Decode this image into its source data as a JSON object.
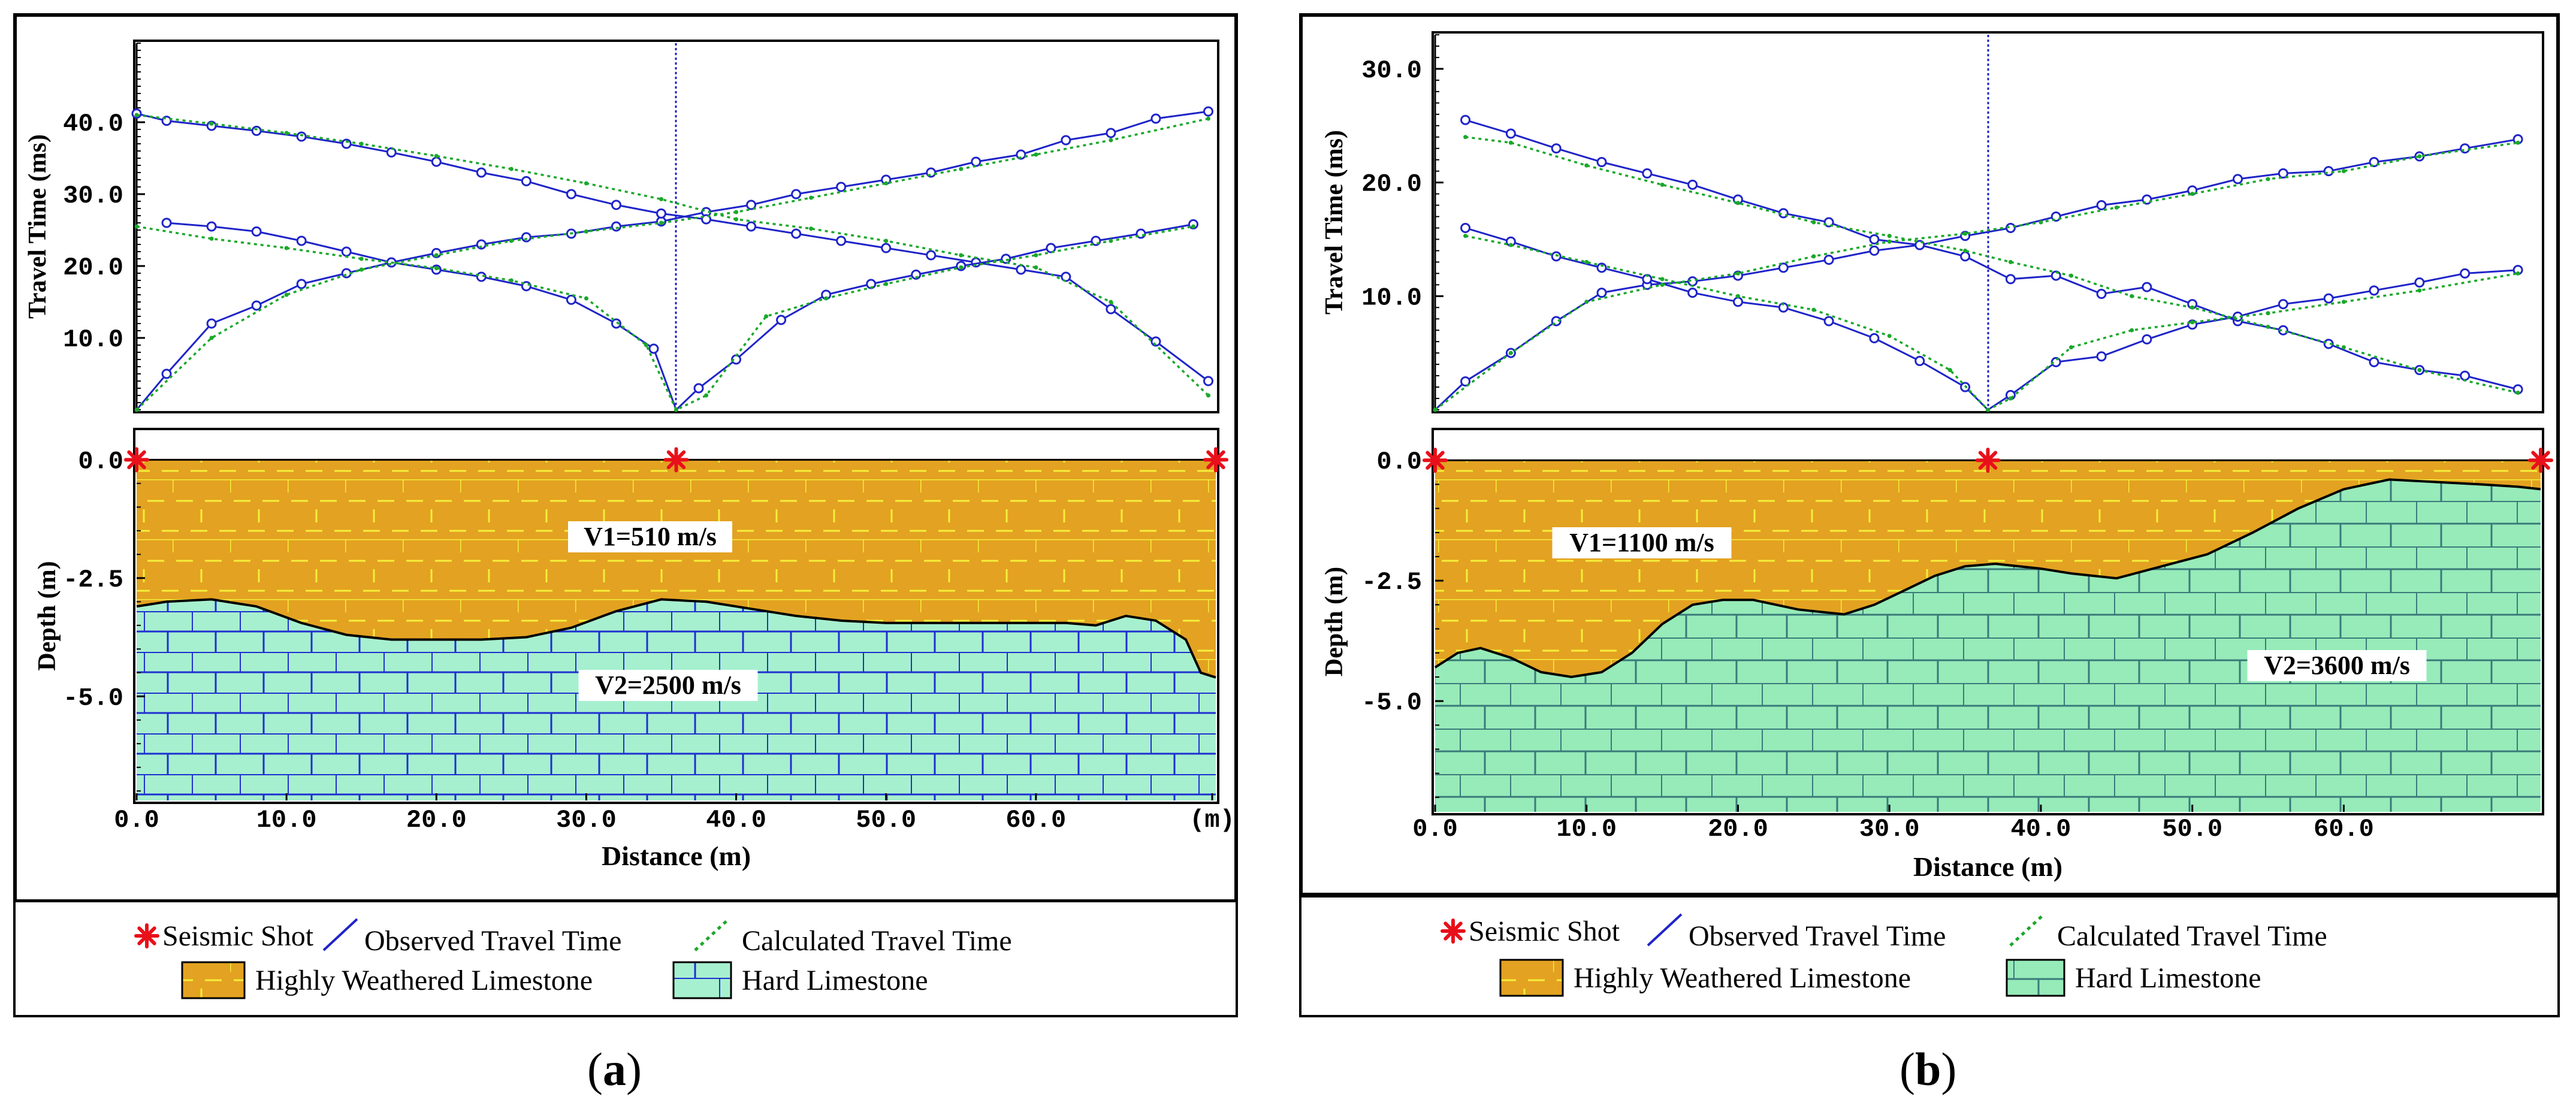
{
  "colors": {
    "observed": "#1f24c8",
    "calculated": "#1aa82a",
    "weathered_fill": "#e3a221",
    "weathered_line": "#f4ef3a",
    "hard_a_fill": "#a6f0cf",
    "hard_a_line": "#1f2fd0",
    "hard_b_fill": "#96ebb9",
    "hard_b_line": "#3a7a7a",
    "shot": "#e8101a"
  },
  "legend": {
    "shot": "Seismic Shot",
    "observed": "Observed Travel Time",
    "calculated": "Calculated Travel Time",
    "weathered": "Highly Weathered Limestone",
    "hard": "Hard Limestone"
  },
  "panels": [
    {
      "tag": "a",
      "chart_data": {
        "type": "line",
        "travel_time": {
          "ylabel": "Travel Time (ms)",
          "yticks": [
            "10.0",
            "20.0",
            "30.0",
            "40.0"
          ],
          "ylim": [
            0,
            51
          ],
          "xlim": [
            0,
            72
          ],
          "series": [
            {
              "name": "Observed Travel Time",
              "shot_x": 0,
              "x": [
                0,
                2,
                5,
                8,
                11,
                14,
                17,
                20,
                23,
                26,
                29,
                32,
                35,
                38,
                41,
                44,
                47,
                50,
                53,
                56,
                59,
                62,
                65,
                68,
                71.5
              ],
              "y": [
                0,
                5,
                12,
                14.5,
                17.5,
                19,
                20.5,
                21.8,
                23,
                24,
                24.5,
                25.5,
                26.2,
                27.5,
                28.5,
                30,
                31,
                32,
                33,
                34.5,
                35.5,
                37.5,
                38.5,
                40.5,
                41.5
              ]
            },
            {
              "name": "Observed Travel Time",
              "shot_x": 71.5,
              "x": [
                0,
                2,
                5,
                8,
                11,
                14,
                17,
                20,
                23,
                26,
                29,
                32,
                35,
                38,
                41,
                44,
                47,
                50,
                53,
                56,
                59,
                62,
                65,
                68,
                71.5
              ],
              "y": [
                41.2,
                40.2,
                39.5,
                38.8,
                38,
                37,
                35.8,
                34.5,
                33,
                31.8,
                30,
                28.5,
                27.3,
                26.5,
                25.5,
                24.5,
                23.5,
                22.5,
                21.5,
                20.5,
                19.5,
                18.5,
                14,
                9.5,
                4
              ]
            },
            {
              "name": "Observed Travel Time",
              "shot_x": 36,
              "x": [
                2,
                5,
                8,
                11,
                14,
                17,
                20,
                23,
                26,
                29,
                32,
                34.5,
                36,
                37.5,
                40,
                43,
                46,
                49,
                52,
                55,
                58,
                61,
                64,
                67,
                70.5
              ],
              "y": [
                26,
                25.5,
                24.8,
                23.5,
                22,
                20.5,
                19.5,
                18.5,
                17.2,
                15.3,
                12,
                8.5,
                0,
                3,
                7,
                12.5,
                16,
                17.5,
                18.8,
                20,
                21,
                22.5,
                23.5,
                24.5,
                25.8
              ]
            },
            {
              "name": "Calculated Travel Time",
              "shot_x": 0,
              "x": [
                0,
                5,
                10,
                15,
                20,
                25,
                30,
                35,
                40,
                45,
                50,
                55,
                60,
                65,
                71.5
              ],
              "y": [
                0,
                10,
                16,
                19.5,
                21.5,
                23.5,
                24.8,
                26,
                27.5,
                29.5,
                31.5,
                33.5,
                35.5,
                37.5,
                40.5
              ]
            },
            {
              "name": "Calculated Travel Time",
              "shot_x": 71.5,
              "x": [
                0,
                5,
                10,
                15,
                20,
                25,
                30,
                35,
                40,
                45,
                50,
                55,
                60,
                65,
                71.5
              ],
              "y": [
                41,
                39.8,
                38.5,
                37,
                35.3,
                33.5,
                31.5,
                29.3,
                26.5,
                25.2,
                23.5,
                21.5,
                19.8,
                15,
                2
              ]
            },
            {
              "name": "Calculated Travel Time",
              "shot_x": 36,
              "x": [
                0,
                5,
                10,
                15,
                20,
                25,
                30,
                34,
                36,
                38,
                42,
                46,
                50,
                55,
                60,
                65,
                70.5
              ],
              "y": [
                25.5,
                23.8,
                22.5,
                21,
                19.7,
                18,
                15.5,
                9,
                0,
                2,
                13,
                15.5,
                17.5,
                19.8,
                21.5,
                23.5,
                25.5
              ]
            }
          ]
        },
        "section": {
          "ylabel": "Depth (m)",
          "yticks": [
            "0.0",
            "-2.5",
            "-5.0"
          ],
          "ylim": [
            -7.2,
            0.6
          ],
          "xlabel": "Distance (m)",
          "xticks": [
            "0.0",
            "10.0",
            "20.0",
            "30.0",
            "40.0",
            "50.0",
            "60.0",
            "(m)"
          ],
          "xlim": [
            0,
            72
          ],
          "shots": [
            0,
            36,
            72
          ],
          "v1_label": "V1=510 m/s",
          "v2_label": "V2=2500 m/s",
          "interface": {
            "x": [
              0,
              2,
              5,
              8,
              11,
              14,
              17,
              20,
              23,
              26,
              29,
              32,
              35,
              38,
              41,
              44,
              47,
              50,
              53,
              56,
              59,
              62,
              64,
              66,
              68,
              70,
              71,
              72
            ],
            "y": [
              -3.1,
              -3.0,
              -2.95,
              -3.1,
              -3.45,
              -3.7,
              -3.8,
              -3.8,
              -3.8,
              -3.75,
              -3.55,
              -3.2,
              -2.95,
              -3.0,
              -3.15,
              -3.3,
              -3.4,
              -3.45,
              -3.45,
              -3.45,
              -3.45,
              -3.45,
              -3.5,
              -3.3,
              -3.4,
              -3.8,
              -4.5,
              -4.6
            ]
          }
        }
      }
    },
    {
      "tag": "b",
      "chart_data": {
        "type": "line",
        "travel_time": {
          "ylabel": "Travel Time (ms)",
          "yticks": [
            "10.0",
            "20.0",
            "30.0"
          ],
          "ylim": [
            0,
            33
          ],
          "xlim": [
            0,
            73
          ],
          "series": [
            {
              "name": "Observed Travel Time",
              "shot_x": 0,
              "x": [
                0,
                2,
                5,
                8,
                11,
                14,
                17,
                20,
                23,
                26,
                29,
                32,
                35,
                38,
                41,
                44,
                47,
                50,
                53,
                56,
                59,
                62,
                65,
                68,
                71.5
              ],
              "y": [
                0,
                2.5,
                5,
                7.8,
                10.3,
                11,
                11.3,
                11.8,
                12.5,
                13.2,
                14,
                14.5,
                15.3,
                16,
                17,
                18,
                18.5,
                19.3,
                20.3,
                20.8,
                21,
                21.8,
                22.3,
                23,
                23.8
              ]
            },
            {
              "name": "Observed Travel Time",
              "shot_x": 71.5,
              "x": [
                2,
                5,
                8,
                11,
                14,
                17,
                20,
                23,
                26,
                29,
                32,
                35,
                38,
                41,
                44,
                47,
                50,
                53,
                56,
                59,
                62,
                65,
                68,
                71.5
              ],
              "y": [
                25.5,
                24.3,
                23,
                21.8,
                20.8,
                19.8,
                18.5,
                17.3,
                16.5,
                15,
                14.5,
                13.5,
                11.5,
                11.8,
                10.2,
                10.8,
                9.3,
                7.8,
                7,
                5.8,
                4.2,
                3.5,
                3,
                1.8
              ]
            },
            {
              "name": "Observed Travel Time",
              "shot_x": 36.5,
              "x": [
                2,
                5,
                8,
                11,
                14,
                17,
                20,
                23,
                26,
                29,
                32,
                35,
                36.5,
                38,
                41,
                44,
                47,
                50,
                53,
                56,
                59,
                62,
                65,
                68,
                71.5
              ],
              "y": [
                16,
                14.8,
                13.5,
                12.5,
                11.5,
                10.3,
                9.5,
                9,
                7.8,
                6.3,
                4.3,
                2,
                0,
                1.3,
                4.2,
                4.7,
                6.2,
                7.5,
                8.2,
                9.3,
                9.8,
                10.5,
                11.2,
                12,
                12.3
              ]
            },
            {
              "name": "Calculated Travel Time",
              "shot_x": 0,
              "x": [
                0,
                5,
                10,
                15,
                20,
                25,
                30,
                35,
                40,
                45,
                50,
                55,
                60,
                65,
                71.5
              ],
              "y": [
                0,
                5,
                9.5,
                11,
                12,
                13.5,
                14.8,
                15.5,
                16.5,
                17.8,
                19,
                20.3,
                21,
                22.3,
                23.5
              ]
            },
            {
              "name": "Calculated Travel Time",
              "shot_x": 71.5,
              "x": [
                2,
                5,
                10,
                15,
                20,
                25,
                30,
                35,
                38,
                42,
                46,
                50,
                55,
                60,
                65,
                71.5
              ],
              "y": [
                24,
                23.5,
                21.5,
                19.8,
                18.2,
                16.5,
                15.3,
                14,
                13,
                11.8,
                10,
                9,
                7.3,
                5.5,
                3.5,
                1.5
              ]
            },
            {
              "name": "Calculated Travel Time",
              "shot_x": 36.5,
              "x": [
                2,
                5,
                10,
                15,
                20,
                25,
                30,
                34,
                36.5,
                38,
                42,
                46,
                50,
                55,
                60,
                65,
                71.5
              ],
              "y": [
                15.3,
                14.5,
                13,
                11.5,
                10,
                8.8,
                6.5,
                3.5,
                0,
                1,
                5.5,
                7,
                7.7,
                8.5,
                9.5,
                10.5,
                12
              ]
            }
          ]
        },
        "section": {
          "ylabel": "Depth (m)",
          "yticks": [
            "0.0",
            "-2.5",
            "-5.0"
          ],
          "ylim": [
            -7.3,
            0.6
          ],
          "xlabel": "Distance (m)",
          "xticks": [
            "0.0",
            "10.0",
            "20.0",
            "30.0",
            "40.0",
            "50.0",
            "60.0"
          ],
          "xlim": [
            0,
            73
          ],
          "shots": [
            0,
            36.5,
            73
          ],
          "v1_label": "V1=1100 m/s",
          "v2_label": "V2=3600 m/s",
          "interface": {
            "x": [
              0,
              1.5,
              3,
              5,
              7,
              9,
              11,
              13,
              15,
              17,
              19,
              21,
              24,
              27,
              29,
              31,
              33,
              35,
              37,
              40,
              42,
              45,
              48,
              51,
              54,
              57,
              60,
              63,
              66,
              69,
              71.5,
              73
            ],
            "y": [
              -4.3,
              -4.0,
              -3.9,
              -4.1,
              -4.4,
              -4.5,
              -4.4,
              -4.0,
              -3.4,
              -3.0,
              -2.9,
              -2.9,
              -3.1,
              -3.2,
              -3.0,
              -2.7,
              -2.4,
              -2.2,
              -2.15,
              -2.25,
              -2.35,
              -2.45,
              -2.2,
              -1.95,
              -1.5,
              -1.0,
              -0.6,
              -0.4,
              -0.45,
              -0.5,
              -0.55,
              -0.6
            ]
          }
        }
      }
    }
  ]
}
